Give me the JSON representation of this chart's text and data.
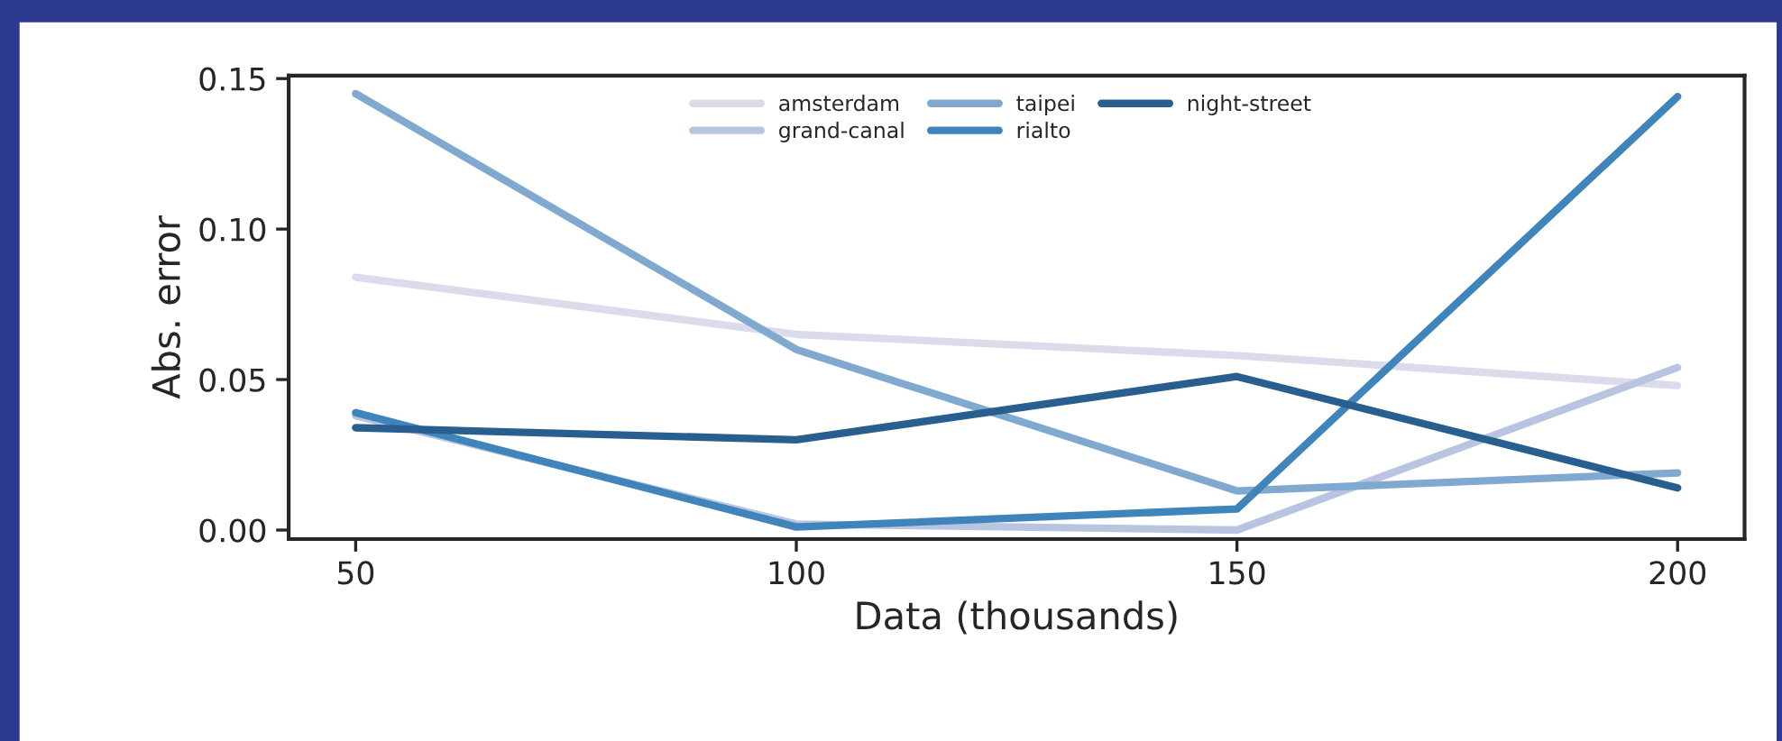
{
  "chart_data": {
    "type": "line",
    "xlabel": "Data (thousands)",
    "ylabel": "Abs. error",
    "x": [
      50,
      100,
      150,
      200
    ],
    "series": [
      {
        "name": "amsterdam",
        "color": "#dcdbec",
        "values": [
          0.084,
          0.065,
          0.058,
          0.048
        ]
      },
      {
        "name": "grand-canal",
        "color": "#b9c5e0",
        "values": [
          0.038,
          0.002,
          0.0,
          0.054
        ]
      },
      {
        "name": "taipei",
        "color": "#80a9d0",
        "values": [
          0.145,
          0.06,
          0.013,
          0.019
        ]
      },
      {
        "name": "rialto",
        "color": "#3f84bb",
        "values": [
          0.039,
          0.001,
          0.007,
          0.144
        ]
      },
      {
        "name": "night-street",
        "color": "#285f8f",
        "values": [
          0.034,
          0.03,
          0.051,
          0.014
        ]
      }
    ],
    "xlim": [
      42.4,
      207.6
    ],
    "xticks": [
      50,
      100,
      150,
      200
    ],
    "ylim": [
      -0.003,
      0.151
    ],
    "yticks": [
      {
        "value": 0,
        "label": "0.00"
      },
      {
        "value": 0.05,
        "label": "0.05"
      },
      {
        "value": 0.1,
        "label": "0.10"
      },
      {
        "value": 0.15,
        "label": "0.15"
      }
    ],
    "grid": false,
    "legend": "top",
    "marker": "none",
    "line_style": "solid"
  }
}
